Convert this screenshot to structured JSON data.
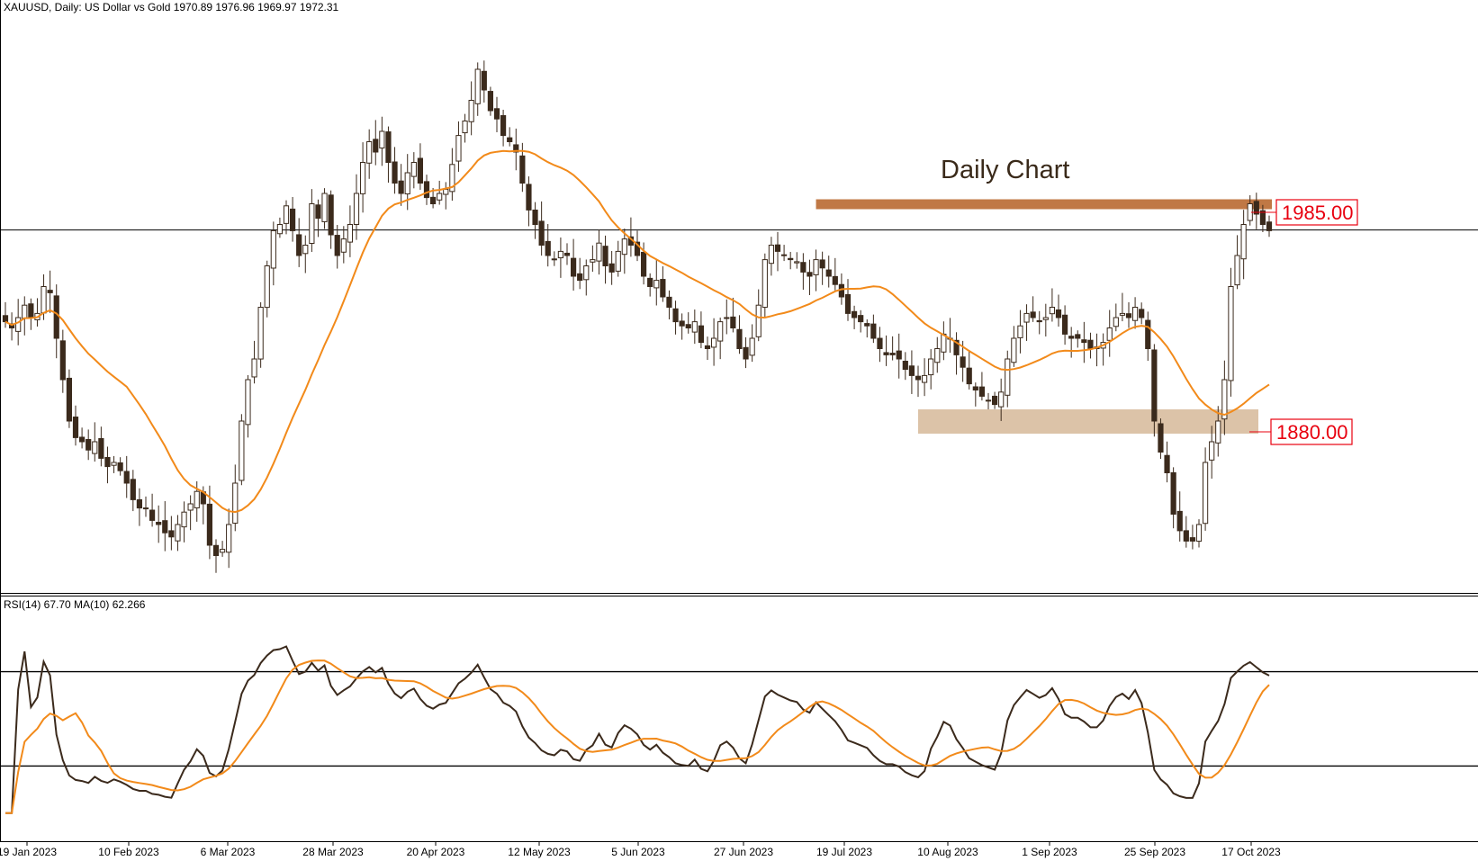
{
  "header": {
    "symbol_line": "XAUUSD, Daily:  US Dollar vs Gold  1970.89 1976.96 1969.97 1972.31"
  },
  "annotations": {
    "title": "Daily Chart",
    "resistance_label": "1985.00",
    "support_label": "1880.00"
  },
  "rsi_panel": {
    "label": "RSI(14) 67.70 MA(10) 62.266"
  },
  "colors": {
    "candle": "#3b2a1c",
    "ma_line": "#f28a1a",
    "resistance_zone": "#c07845",
    "support_zone": "#dcc3a8",
    "rsi_line": "#3b2a1c",
    "rsi_ma_line": "#f28a1a",
    "label_red": "#e8000f"
  },
  "chart_data": [
    {
      "type": "candlestick",
      "title": "Daily Chart",
      "x_ticks": [
        "19 Jan 2023",
        "10 Feb 2023",
        "6 Mar 2023",
        "28 Mar 2023",
        "20 Apr 2023",
        "12 May 2023",
        "5 Jun 2023",
        "27 Jun 2023",
        "19 Jul 2023",
        "10 Aug 2023",
        "1 Sep 2023",
        "25 Sep 2023",
        "17 Oct 2023"
      ],
      "ylim": [
        1800,
        2080
      ],
      "current_price": 1972.31,
      "ohlc_last": {
        "open": 1970.89,
        "high": 1976.96,
        "low": 1969.97,
        "close": 1972.31
      },
      "levels": [
        {
          "label": "1985.00",
          "value": 1985.0,
          "type": "resistance",
          "x_start": "19 Jul 2023"
        },
        {
          "label": "1880.00",
          "value": 1880.0,
          "type": "support",
          "x_start": "10 Aug 2023"
        }
      ],
      "close_series": [
        1928,
        1925,
        1930,
        1936,
        1930,
        1932,
        1945,
        1942,
        1920,
        1900,
        1880,
        1872,
        1870,
        1866,
        1870,
        1862,
        1858,
        1860,
        1856,
        1850,
        1842,
        1838,
        1838,
        1832,
        1830,
        1826,
        1824,
        1830,
        1836,
        1840,
        1846,
        1840,
        1820,
        1815,
        1818,
        1830,
        1850,
        1880,
        1900,
        1910,
        1935,
        1955,
        1972,
        1975,
        1984,
        1972,
        1960,
        1965,
        1985,
        1978,
        1990,
        1970,
        1960,
        1968,
        1975,
        1990,
        2005,
        2015,
        2010,
        2020,
        2005,
        1995,
        1990,
        2000,
        2005,
        1995,
        1988,
        1985,
        1990,
        1992,
        2004,
        2018,
        2025,
        2035,
        2050,
        2040,
        2030,
        2026,
        2018,
        2015,
        2010,
        1995,
        1982,
        1975,
        1965,
        1960,
        1958,
        1962,
        1960,
        1950,
        1948,
        1955,
        1958,
        1966,
        1955,
        1952,
        1962,
        1968,
        1965,
        1960,
        1950,
        1945,
        1948,
        1940,
        1935,
        1928,
        1926,
        1925,
        1928,
        1918,
        1915,
        1920,
        1928,
        1930,
        1925,
        1915,
        1910,
        1920,
        1936,
        1958,
        1965,
        1962,
        1960,
        1958,
        1957,
        1952,
        1950,
        1958,
        1954,
        1950,
        1946,
        1940,
        1932,
        1930,
        1928,
        1926,
        1920,
        1915,
        1912,
        1912,
        1910,
        1905,
        1902,
        1900,
        1902,
        1910,
        1915,
        1922,
        1920,
        1912,
        1906,
        1898,
        1895,
        1892,
        1890,
        1888,
        1894,
        1910,
        1920,
        1926,
        1932,
        1930,
        1928,
        1930,
        1935,
        1930,
        1922,
        1920,
        1920,
        1918,
        1915,
        1915,
        1918,
        1925,
        1930,
        1932,
        1930,
        1935,
        1930,
        1915,
        1880,
        1865,
        1855,
        1835,
        1827,
        1822,
        1822,
        1830,
        1860,
        1870,
        1880,
        1900,
        1945,
        1960,
        1975,
        1985,
        1980,
        1975,
        1972
      ]
    },
    {
      "type": "line",
      "title": "RSI(14) 67.70 MA(10) 62.266",
      "ylim": [
        0,
        100
      ],
      "levels": [
        70,
        30
      ],
      "series": [
        {
          "name": "RSI(14)",
          "last": 67.7
        },
        {
          "name": "MA(10)",
          "last": 62.266
        }
      ]
    }
  ]
}
